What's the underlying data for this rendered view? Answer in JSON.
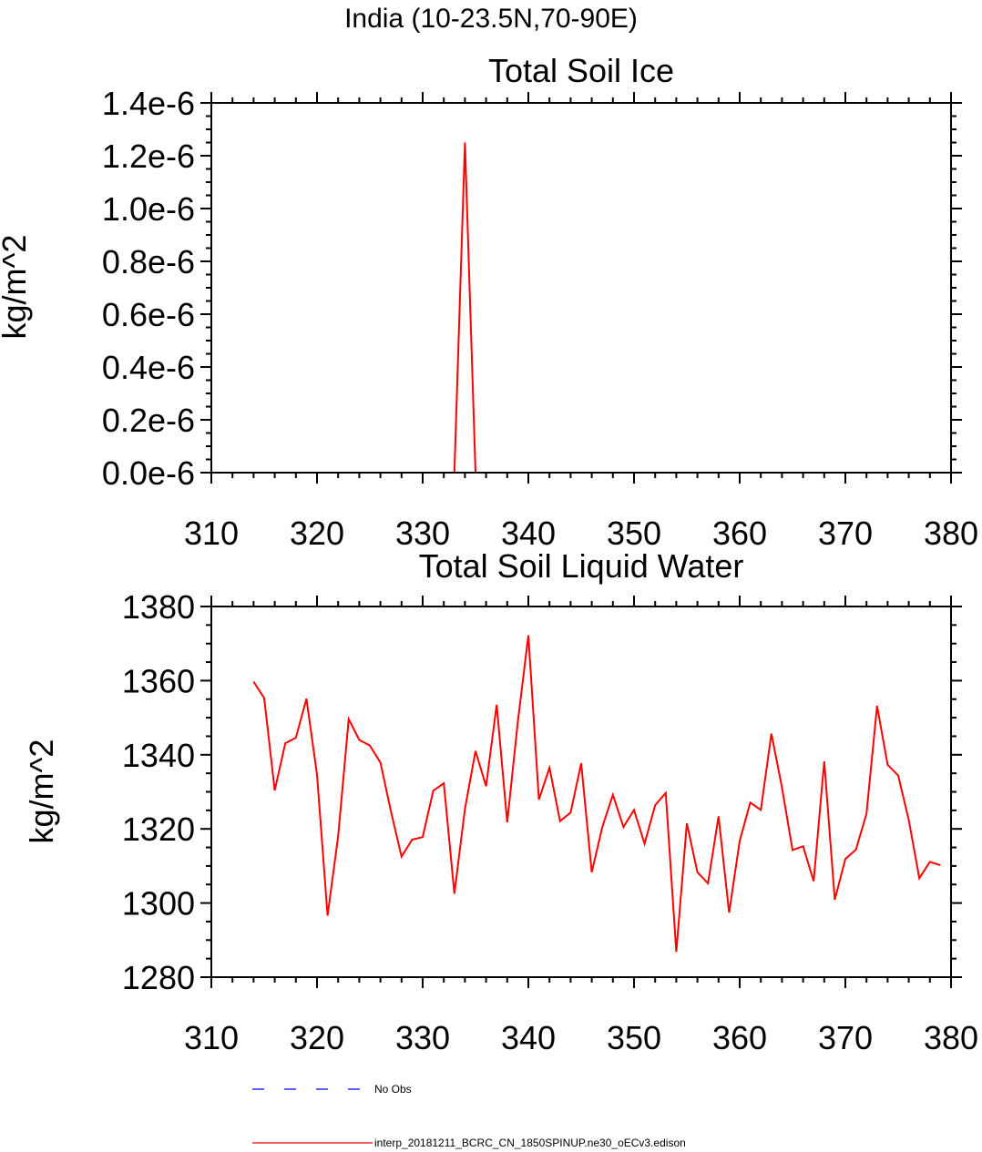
{
  "figure": {
    "suptitle": "India (10-23.5N,70-90E)"
  },
  "colors": {
    "model_line": "#ff0000",
    "obs_line": "#0000ff",
    "axes": "#000000"
  },
  "legend": {
    "position": "bottom-left",
    "items": [
      {
        "label": "No Obs",
        "color": "#0000ff",
        "style": "dashed"
      },
      {
        "label": "interp_20181211_BCRC_CN_1850SPINUP.ne30_oECv3.edison",
        "color": "#ff0000",
        "style": "solid"
      }
    ]
  },
  "chart_data": [
    {
      "type": "line",
      "title": "Total Soil Ice",
      "xlabel": "",
      "ylabel": "kg/m^2",
      "xlim": [
        310,
        380
      ],
      "ylim": [
        0,
        1.4e-06
      ],
      "xticks": [
        310,
        320,
        330,
        340,
        350,
        360,
        370,
        380
      ],
      "xtick_labels": [
        "310",
        "320",
        "330",
        "340",
        "350",
        "360",
        "370",
        "380"
      ],
      "yticks": [
        0,
        2e-07,
        4e-07,
        6e-07,
        8e-07,
        1e-06,
        1.2e-06,
        1.4e-06
      ],
      "ytick_labels": [
        "0.0e-6",
        "0.2e-6",
        "0.4e-6",
        "0.6e-6",
        "0.8e-6",
        "1.0e-6",
        "1.2e-6",
        "1.4e-6"
      ],
      "grid": false,
      "series": [
        {
          "name": "interp_20181211_BCRC_CN_1850SPINUP.ne30_oECv3.edison",
          "color": "#ff0000",
          "x": [
            314,
            315,
            316,
            317,
            318,
            319,
            320,
            321,
            322,
            323,
            324,
            325,
            326,
            327,
            328,
            329,
            330,
            331,
            332,
            333,
            334,
            335,
            336,
            337,
            338,
            339,
            340,
            341,
            342,
            343,
            344,
            345,
            346,
            347,
            348,
            349,
            350,
            351,
            352,
            353,
            354,
            355,
            356,
            357,
            358,
            359,
            360,
            361,
            362,
            363,
            364,
            365,
            366,
            367,
            368,
            369,
            370,
            371,
            372,
            373,
            374,
            375,
            376,
            377,
            378,
            379
          ],
          "y": [
            0,
            0,
            0,
            0,
            0,
            0,
            0,
            0,
            0,
            0,
            0,
            0,
            0,
            0,
            0,
            0,
            0,
            0,
            0,
            0,
            1.25e-06,
            0,
            0,
            0,
            0,
            0,
            0,
            0,
            0,
            0,
            0,
            0,
            0,
            0,
            0,
            0,
            0,
            0,
            0,
            0,
            0,
            0,
            0,
            0,
            0,
            0,
            0,
            0,
            0,
            0,
            0,
            0,
            0,
            0,
            0,
            0,
            0,
            0,
            0,
            0,
            0,
            0,
            0,
            0,
            0,
            0
          ]
        }
      ]
    },
    {
      "type": "line",
      "title": "Total Soil Liquid Water",
      "xlabel": "",
      "ylabel": "kg/m^2",
      "xlim": [
        310,
        380
      ],
      "ylim": [
        1280,
        1380
      ],
      "xticks": [
        310,
        320,
        330,
        340,
        350,
        360,
        370,
        380
      ],
      "xtick_labels": [
        "310",
        "320",
        "330",
        "340",
        "350",
        "360",
        "370",
        "380"
      ],
      "yticks": [
        1280,
        1300,
        1320,
        1340,
        1360,
        1380
      ],
      "ytick_labels": [
        "1280",
        "1300",
        "1320",
        "1340",
        "1360",
        "1380"
      ],
      "grid": false,
      "series": [
        {
          "name": "interp_20181211_BCRC_CN_1850SPINUP.ne30_oECv3.edison",
          "color": "#ff0000",
          "x": [
            314,
            315,
            316,
            317,
            318,
            319,
            320,
            321,
            322,
            323,
            324,
            325,
            326,
            327,
            328,
            329,
            330,
            331,
            332,
            333,
            334,
            335,
            336,
            337,
            338,
            339,
            340,
            341,
            342,
            343,
            344,
            345,
            346,
            347,
            348,
            349,
            350,
            351,
            352,
            353,
            354,
            355,
            356,
            357,
            358,
            359,
            360,
            361,
            362,
            363,
            364,
            365,
            366,
            367,
            368,
            369,
            370,
            371,
            372,
            373,
            374,
            375,
            376,
            377,
            378,
            379
          ],
          "y": [
            1359.7,
            1355.3,
            1330.4,
            1343.1,
            1344.6,
            1355.1,
            1334.7,
            1296.6,
            1318.0,
            1349.6,
            1344.0,
            1342.5,
            1337.9,
            1324.7,
            1312.5,
            1317.1,
            1317.8,
            1330.3,
            1332.3,
            1302.5,
            1325.4,
            1341.0,
            1331.5,
            1353.5,
            1321.8,
            1348.8,
            1372.2,
            1327.9,
            1336.5,
            1322.1,
            1324.4,
            1337.7,
            1308.3,
            1320.5,
            1329.2,
            1320.5,
            1325.1,
            1316.0,
            1326.4,
            1329.7,
            1286.8,
            1321.5,
            1308.3,
            1305.3,
            1323.4,
            1297.4,
            1316.7,
            1327.1,
            1325.1,
            1345.7,
            1331.2,
            1314.3,
            1315.3,
            1305.9,
            1338.2,
            1300.9,
            1311.9,
            1314.4,
            1324.1,
            1353.2,
            1337.3,
            1334.4,
            1322.4,
            1306.7,
            1311.1,
            1310.2
          ]
        }
      ]
    }
  ]
}
